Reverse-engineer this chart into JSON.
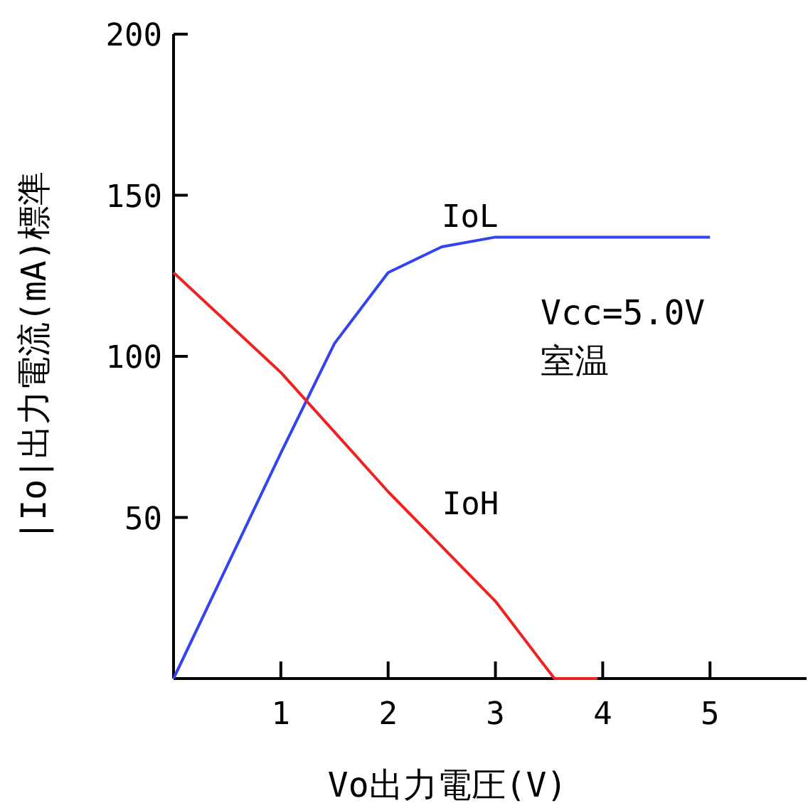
{
  "chart_data": {
    "type": "line",
    "xlabel": "Vo出力電圧(V)",
    "ylabel": "|Io|出力電流(mA)標準",
    "xlim": [
      0,
      5.9
    ],
    "xticks": [
      1,
      2,
      3,
      4,
      5
    ],
    "ylim": [
      0,
      200
    ],
    "yticks": [
      50,
      100,
      150,
      200
    ],
    "grid": false,
    "tick_labels": "xy",
    "marker": "none",
    "line_style": "solid",
    "series": [
      {
        "name": "IoL",
        "color": "#3344ee",
        "x": [
          0,
          0.5,
          1,
          1.5,
          2,
          2.5,
          3,
          5
        ],
        "values": [
          0,
          35,
          70,
          104,
          126,
          134,
          137,
          137
        ]
      },
      {
        "name": "IoH",
        "color": "#ee2222",
        "x": [
          0,
          1,
          2,
          3,
          3.55,
          3.95
        ],
        "values": [
          126,
          95,
          58,
          24,
          0,
          0
        ]
      }
    ],
    "annotations": [
      "Vcc=5.0V",
      "室温"
    ]
  }
}
